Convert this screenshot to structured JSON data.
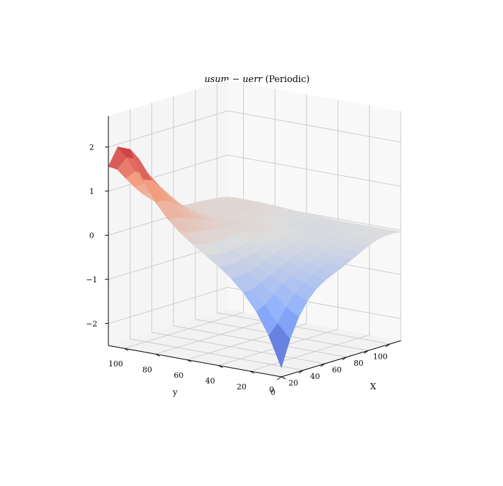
{
  "chart_data": {
    "type": "surface3d",
    "title_math": "usum − uerr",
    "title_suffix": " (Periodic)",
    "xlabel": "X",
    "ylabel": "y",
    "zlabel": "",
    "xlim": [
      0,
      110
    ],
    "ylim": [
      0,
      110
    ],
    "zlim": [
      -2.5,
      2.7
    ],
    "x_ticks": [
      0,
      20,
      40,
      60,
      80,
      100
    ],
    "y_ticks": [
      0,
      20,
      40,
      60,
      80,
      100
    ],
    "z_ticks": [
      -2,
      -1,
      0,
      1,
      2
    ],
    "z_tick_labels": [
      "−2",
      "−1",
      "0",
      "1",
      "2"
    ],
    "colormap": "coolwarm",
    "grid": true,
    "surface": {
      "x": [
        0,
        8,
        16,
        24,
        32,
        40,
        48,
        56,
        64,
        72,
        80,
        88,
        96,
        104,
        110
      ],
      "y": [
        0,
        8,
        16,
        24,
        32,
        40,
        48,
        56,
        64,
        72,
        80,
        88,
        96,
        104,
        110
      ],
      "peak": {
        "x": 0,
        "y": 100,
        "z": 2.45
      },
      "trough": {
        "x": 0,
        "y": 0,
        "z": -2.3
      },
      "baseline_z": 0
    }
  }
}
